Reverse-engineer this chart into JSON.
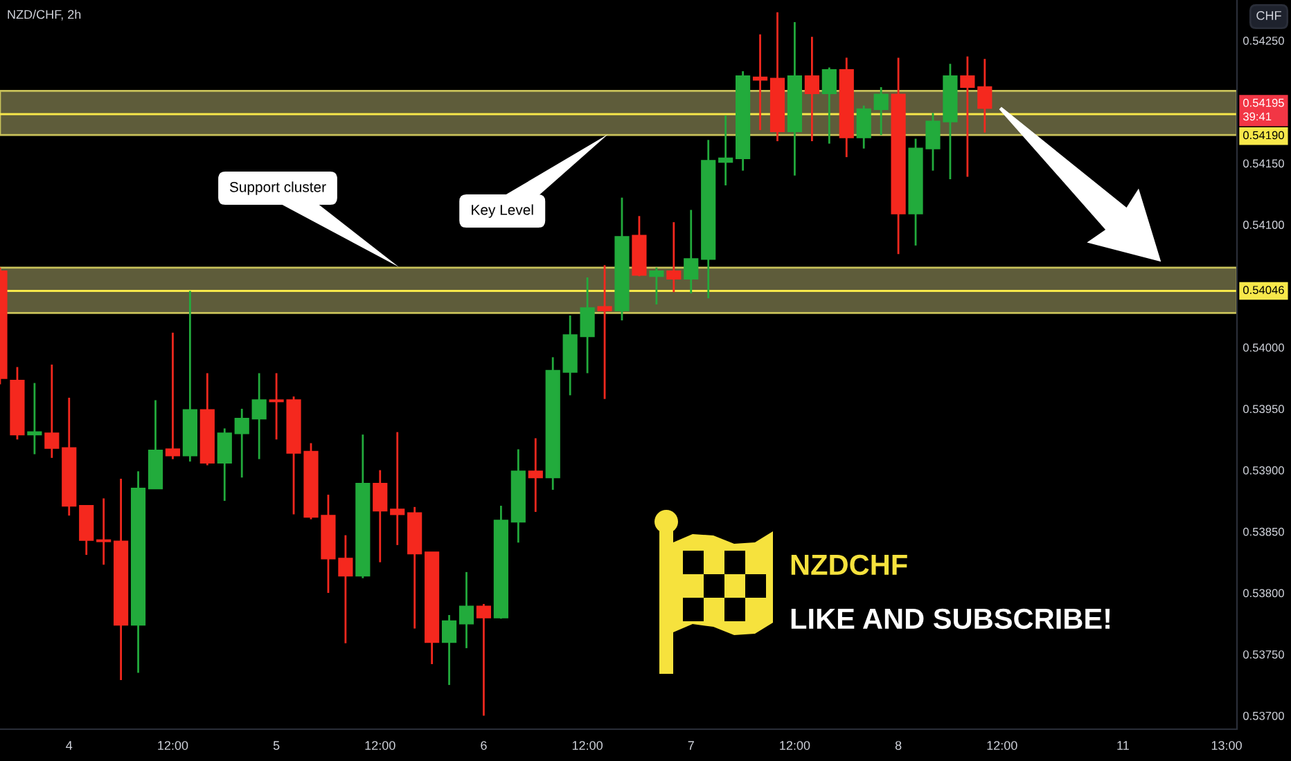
{
  "chart_data": {
    "type": "candlestick",
    "title": "NZD/CHF, 2h",
    "ylabel": "CHF",
    "categories": [
      null,
      null,
      null,
      null,
      "4",
      null,
      null,
      null,
      null,
      null,
      "12:00",
      null,
      null,
      null,
      null,
      null,
      "5",
      null,
      null,
      null,
      null,
      null,
      "12:00",
      null,
      null,
      null,
      null,
      null,
      "6",
      null,
      null,
      null,
      null,
      null,
      "12:00",
      null,
      null,
      null,
      null,
      null,
      "7",
      null,
      null,
      null,
      null,
      null,
      "12:00",
      null,
      null,
      null,
      null,
      null,
      "8",
      null,
      null,
      null,
      null,
      null,
      "12:00",
      null,
      null,
      null,
      null,
      null,
      null,
      "11",
      null,
      null,
      null,
      null,
      null,
      "13:00"
    ],
    "ohlc": [
      [
        0.54062,
        0.54065,
        0.5397,
        0.53975
      ],
      [
        0.53973,
        0.53984,
        0.53925,
        0.53929
      ],
      [
        0.53929,
        0.53971,
        0.53913,
        0.53931
      ],
      [
        0.5393,
        0.53986,
        0.5391,
        0.53918
      ],
      [
        0.53918,
        0.53959,
        0.53863,
        0.53871
      ],
      [
        0.53871,
        0.53871,
        0.53831,
        0.53843
      ],
      [
        0.53843,
        0.53877,
        0.53823,
        0.53842
      ],
      [
        0.53842,
        0.53893,
        0.53729,
        0.53774
      ],
      [
        0.53774,
        0.53899,
        0.53735,
        0.53885
      ],
      [
        0.53885,
        0.53957,
        0.53885,
        0.53916
      ],
      [
        0.53917,
        0.54012,
        0.53909,
        0.53912
      ],
      [
        0.53912,
        0.54046,
        0.53907,
        0.53949
      ],
      [
        0.53949,
        0.53979,
        0.53904,
        0.53906
      ],
      [
        0.53906,
        0.53934,
        0.53875,
        0.5393
      ],
      [
        0.5393,
        0.5395,
        0.53894,
        0.53942
      ],
      [
        0.53942,
        0.53979,
        0.53909,
        0.53957
      ],
      [
        0.53957,
        0.53979,
        0.53925,
        0.53956
      ],
      [
        0.53957,
        0.5396,
        0.53864,
        0.53914
      ],
      [
        0.53915,
        0.53922,
        0.5386,
        0.53862
      ],
      [
        0.53863,
        0.5388,
        0.538,
        0.53828
      ],
      [
        0.53828,
        0.53847,
        0.53759,
        0.53814
      ],
      [
        0.53814,
        0.53929,
        0.53812,
        0.53889
      ],
      [
        0.53889,
        0.539,
        0.53825,
        0.53867
      ],
      [
        0.53868,
        0.53931,
        0.53839,
        0.53864
      ],
      [
        0.53865,
        0.5387,
        0.53771,
        0.53832
      ],
      [
        0.53833,
        0.53833,
        0.53742,
        0.5376
      ],
      [
        0.5376,
        0.53782,
        0.53725,
        0.53777
      ],
      [
        0.53775,
        0.53817,
        0.53755,
        0.53789
      ],
      [
        0.53789,
        0.53791,
        0.537,
        0.5378
      ],
      [
        0.5378,
        0.53871,
        0.53779,
        0.53859
      ],
      [
        0.53858,
        0.53917,
        0.53841,
        0.53899
      ],
      [
        0.53899,
        0.53926,
        0.53866,
        0.53894
      ],
      [
        0.53894,
        0.53992,
        0.53884,
        0.53981
      ],
      [
        0.5398,
        0.54026,
        0.53961,
        0.5401
      ],
      [
        0.54009,
        0.54057,
        0.53979,
        0.54032
      ],
      [
        0.54033,
        0.54067,
        0.53958,
        0.5403
      ],
      [
        0.5403,
        0.54122,
        0.54022,
        0.5409
      ],
      [
        0.54091,
        0.54107,
        0.54058,
        0.54059
      ],
      [
        0.54058,
        0.54065,
        0.54035,
        0.54062
      ],
      [
        0.54062,
        0.54102,
        0.54045,
        0.54056
      ],
      [
        0.54056,
        0.54112,
        0.54044,
        0.54072
      ],
      [
        0.54072,
        0.54169,
        0.5404,
        0.54152
      ],
      [
        0.54151,
        0.54189,
        0.54132,
        0.54154
      ],
      [
        0.54154,
        0.54225,
        0.54144,
        0.54221
      ],
      [
        0.5422,
        0.54255,
        0.54177,
        0.54218
      ],
      [
        0.54219,
        0.54273,
        0.54168,
        0.54176
      ],
      [
        0.54176,
        0.54265,
        0.5414,
        0.54221
      ],
      [
        0.54221,
        0.54253,
        0.54168,
        0.54207
      ],
      [
        0.54207,
        0.54228,
        0.54166,
        0.54226
      ],
      [
        0.54226,
        0.54236,
        0.54155,
        0.54171
      ],
      [
        0.54171,
        0.54197,
        0.54162,
        0.54194
      ],
      [
        0.54194,
        0.54212,
        0.54173,
        0.54206
      ],
      [
        0.54206,
        0.54236,
        0.54076,
        0.54109
      ],
      [
        0.54109,
        0.5417,
        0.54083,
        0.54162
      ],
      [
        0.54162,
        0.54191,
        0.54144,
        0.54184
      ],
      [
        0.54184,
        0.54231,
        0.54137,
        0.54221
      ],
      [
        0.54221,
        0.54237,
        0.54139,
        0.54212
      ],
      [
        0.54212,
        0.54235,
        0.54175,
        0.54195
      ],
      null,
      null,
      null,
      null,
      null,
      null,
      null,
      null,
      null,
      null,
      null,
      null,
      null,
      null
    ],
    "colors": [
      "#f5281e",
      "#f5281e",
      "#22ab3c",
      "#f5281e",
      "#f5281e",
      "#f5281e",
      "#f5281e",
      "#f5281e",
      "#22ab3c",
      "#22ab3c",
      "#f5281e",
      "#22ab3c",
      "#f5281e",
      "#22ab3c",
      "#22ab3c",
      "#22ab3c",
      "#f5281e",
      "#f5281e",
      "#f5281e",
      "#f5281e",
      "#f5281e",
      "#22ab3c",
      "#f5281e",
      "#f5281e",
      "#f5281e",
      "#f5281e",
      "#22ab3c",
      "#22ab3c",
      "#f5281e",
      "#22ab3c",
      "#22ab3c",
      "#f5281e",
      "#22ab3c",
      "#22ab3c",
      "#22ab3c",
      "#f5281e",
      "#22ab3c",
      "#f5281e",
      "#22ab3c",
      "#f5281e",
      "#22ab3c",
      "#22ab3c",
      "#22ab3c",
      "#22ab3c",
      "#f5281e",
      "#f5281e",
      "#22ab3c",
      "#f5281e",
      "#22ab3c",
      "#f5281e",
      "#22ab3c",
      "#22ab3c",
      "#f5281e",
      "#22ab3c",
      "#22ab3c",
      "#22ab3c",
      "#f5281e",
      "#f5281e",
      null,
      null,
      null,
      null,
      null,
      null,
      null,
      null,
      null,
      null,
      null,
      null,
      null,
      null
    ],
    "ylim": [
      0.53689,
      0.54283
    ],
    "yticks": [
      {
        "value": 0.537,
        "label": "0.53700"
      },
      {
        "value": 0.5375,
        "label": "0.53750"
      },
      {
        "value": 0.538,
        "label": "0.53800"
      },
      {
        "value": 0.5385,
        "label": "0.53850"
      },
      {
        "value": 0.539,
        "label": "0.53900"
      },
      {
        "value": 0.5395,
        "label": "0.53950"
      },
      {
        "value": 0.54,
        "label": "0.54000"
      },
      {
        "value": 0.541,
        "label": "0.54100"
      },
      {
        "value": 0.5415,
        "label": "0.54150"
      },
      {
        "value": 0.5425,
        "label": "0.54250"
      }
    ],
    "bands": [
      {
        "axis": "y",
        "from": 0.54173,
        "to": 0.54209,
        "color": "#5e5c3a"
      },
      {
        "axis": "y",
        "from": 0.54028,
        "to": 0.54065,
        "color": "#5e5c3a"
      }
    ],
    "ref_lines": [
      {
        "axis": "y",
        "value": 0.5419,
        "label": "0.54190",
        "color": "#f7e84a"
      },
      {
        "axis": "y",
        "value": 0.54046,
        "label": "0.54046",
        "color": "#f7e84a"
      }
    ],
    "annotations": [
      "Support cluster",
      "Key Level",
      {
        "text": "0.54195\n39:41",
        "y": 0.54195
      },
      "NZDCHF",
      "LIKE AND SUBSCRIBE!"
    ]
  }
}
